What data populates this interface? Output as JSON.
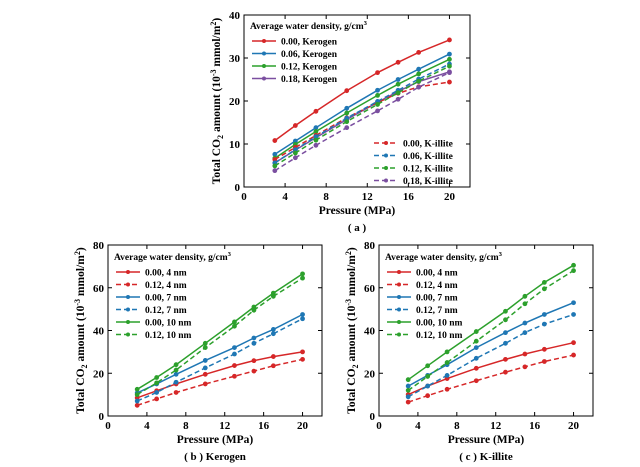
{
  "chart_data": [
    {
      "type": "line",
      "panel_label": "( a )",
      "xlabel": "Pressure (MPa)",
      "ylabel": "Total CO2 amount (10-3 mmol/m2)",
      "xlim": [
        0,
        22
      ],
      "ylim": [
        0,
        40
      ],
      "xticks": [
        0,
        4,
        8,
        12,
        16,
        20
      ],
      "yticks": [
        0,
        10,
        20,
        30,
        40
      ],
      "legend_title": "Average water density, g/cm3",
      "legend_placement": [
        "top-left",
        "bottom-right"
      ],
      "grid": false,
      "series": [
        {
          "name": "0.00, Kerogen",
          "color": "#d62728",
          "style": "solid",
          "x": [
            3,
            5,
            7,
            10,
            13,
            15,
            17,
            20
          ],
          "y": [
            10.8,
            14.3,
            17.6,
            22.4,
            26.6,
            29.0,
            31.3,
            34.2
          ]
        },
        {
          "name": "0.06, Kerogen",
          "color": "#1f77b4",
          "style": "solid",
          "x": [
            3,
            5,
            7,
            10,
            13,
            15,
            17,
            20
          ],
          "y": [
            7.6,
            10.7,
            13.8,
            18.3,
            22.5,
            25.0,
            27.4,
            30.9
          ]
        },
        {
          "name": "0.12, Kerogen",
          "color": "#2ca02c",
          "style": "solid",
          "x": [
            3,
            5,
            7,
            10,
            13,
            15,
            17,
            20
          ],
          "y": [
            6.7,
            9.9,
            12.9,
            17.2,
            21.3,
            23.9,
            26.3,
            29.7
          ]
        },
        {
          "name": "0.18, Kerogen",
          "color": "#7b4fa0",
          "style": "solid",
          "x": [
            3,
            5,
            7,
            10,
            13,
            15,
            17,
            20
          ],
          "y": [
            5.6,
            8.6,
            11.5,
            15.7,
            19.7,
            22.2,
            24.5,
            26.8
          ]
        },
        {
          "name": "0.00, K-illite",
          "color": "#d62728",
          "style": "dashed",
          "x": [
            3,
            5,
            7,
            10,
            13,
            15,
            17,
            20
          ],
          "y": [
            6.4,
            9.2,
            12.0,
            16.1,
            19.6,
            21.8,
            23.3,
            24.4
          ]
        },
        {
          "name": "0.06, K-illite",
          "color": "#1f77b4",
          "style": "dashed",
          "x": [
            3,
            5,
            7,
            10,
            13,
            15,
            17,
            20
          ],
          "y": [
            5.6,
            8.7,
            11.7,
            16.0,
            19.9,
            22.5,
            25.1,
            28.6
          ]
        },
        {
          "name": "0.12, K-illite",
          "color": "#2ca02c",
          "style": "dashed",
          "x": [
            3,
            5,
            7,
            10,
            13,
            15,
            17,
            20
          ],
          "y": [
            4.9,
            7.9,
            10.9,
            15.2,
            19.2,
            21.9,
            24.6,
            28.1
          ]
        },
        {
          "name": "0.18, K-illite",
          "color": "#7b4fa0",
          "style": "dashed",
          "x": [
            3,
            5,
            7,
            10,
            13,
            15,
            17,
            20
          ],
          "y": [
            3.8,
            6.8,
            9.7,
            13.8,
            17.7,
            20.4,
            23.2,
            26.6
          ]
        }
      ]
    },
    {
      "type": "line",
      "panel_label": "( b ) Kerogen",
      "xlabel": "Pressure (MPa)",
      "ylabel": "Total CO2 amount (10-3 mmol/m2)",
      "xlim": [
        0,
        22
      ],
      "ylim": [
        0,
        80
      ],
      "xticks": [
        0,
        4,
        8,
        12,
        16,
        20
      ],
      "yticks": [
        0,
        20,
        40,
        60,
        80
      ],
      "legend_title": "Average water density, g/cm3",
      "legend_placement": "top-left",
      "grid": false,
      "series": [
        {
          "name": "0.00, 4 nm",
          "color": "#d62728",
          "style": "solid",
          "x": [
            3,
            5,
            7,
            10,
            13,
            15,
            17,
            20
          ],
          "y": [
            8.5,
            11.8,
            15.0,
            19.5,
            23.6,
            25.9,
            27.8,
            30.0
          ]
        },
        {
          "name": "0.12, 4 nm",
          "color": "#d62728",
          "style": "dashed",
          "x": [
            3,
            5,
            7,
            10,
            13,
            15,
            17,
            20
          ],
          "y": [
            5.0,
            8.0,
            11.0,
            15.0,
            18.6,
            21.0,
            23.5,
            26.5
          ]
        },
        {
          "name": "0.00, 7 nm",
          "color": "#1f77b4",
          "style": "solid",
          "x": [
            3,
            5,
            7,
            10,
            13,
            15,
            17,
            20
          ],
          "y": [
            10.8,
            15.0,
            19.5,
            26.0,
            32.0,
            36.5,
            40.5,
            47.5
          ]
        },
        {
          "name": "0.12, 7 nm",
          "color": "#1f77b4",
          "style": "dashed",
          "x": [
            3,
            5,
            7,
            10,
            13,
            15,
            17,
            20
          ],
          "y": [
            7.0,
            11.0,
            15.8,
            22.5,
            29.0,
            34.0,
            38.5,
            45.5
          ]
        },
        {
          "name": "0.00, 10 nm",
          "color": "#2ca02c",
          "style": "solid",
          "x": [
            3,
            5,
            7,
            10,
            13,
            15,
            17,
            20
          ],
          "y": [
            12.5,
            18.0,
            24.0,
            34.0,
            44.0,
            51.0,
            57.5,
            66.5
          ]
        },
        {
          "name": "0.12, 10 nm",
          "color": "#2ca02c",
          "style": "dashed",
          "x": [
            3,
            5,
            7,
            10,
            13,
            15,
            17,
            20
          ],
          "y": [
            10.0,
            15.5,
            21.5,
            32.0,
            42.0,
            49.5,
            56.0,
            64.5
          ]
        }
      ]
    },
    {
      "type": "line",
      "panel_label": "( c ) K-illite",
      "xlabel": "Pressure (MPa)",
      "ylabel": "Total CO2 amount (10-3 mmol/m2)",
      "xlim": [
        0,
        22
      ],
      "ylim": [
        0,
        80
      ],
      "xticks": [
        0,
        4,
        8,
        12,
        16,
        20
      ],
      "yticks": [
        0,
        20,
        40,
        60,
        80
      ],
      "legend_title": "Average water density, g/cm3",
      "legend_placement": "top-left",
      "grid": false,
      "series": [
        {
          "name": "0.00, 4 nm",
          "color": "#d62728",
          "style": "solid",
          "x": [
            3,
            5,
            7,
            10,
            13,
            15,
            17,
            20
          ],
          "y": [
            10.0,
            14.0,
            17.5,
            22.3,
            26.5,
            29.0,
            31.2,
            34.3
          ]
        },
        {
          "name": "0.12, 4 nm",
          "color": "#d62728",
          "style": "dashed",
          "x": [
            3,
            5,
            7,
            10,
            13,
            15,
            17,
            20
          ],
          "y": [
            6.5,
            9.5,
            12.5,
            16.5,
            20.5,
            23.0,
            25.5,
            28.5
          ]
        },
        {
          "name": "0.00, 7 nm",
          "color": "#1f77b4",
          "style": "solid",
          "x": [
            3,
            5,
            7,
            10,
            13,
            15,
            17,
            20
          ],
          "y": [
            14.0,
            19.0,
            24.0,
            32.0,
            39.0,
            43.5,
            47.5,
            53.0
          ]
        },
        {
          "name": "0.12, 7 nm",
          "color": "#1f77b4",
          "style": "dashed",
          "x": [
            3,
            5,
            7,
            10,
            13,
            15,
            17,
            20
          ],
          "y": [
            9.0,
            14.0,
            19.0,
            27.0,
            34.0,
            39.0,
            43.0,
            47.5
          ]
        },
        {
          "name": "0.00, 10 nm",
          "color": "#2ca02c",
          "style": "solid",
          "x": [
            3,
            5,
            7,
            10,
            13,
            15,
            17,
            20
          ],
          "y": [
            17.0,
            23.5,
            30.0,
            39.5,
            49.0,
            56.0,
            62.5,
            70.5
          ]
        },
        {
          "name": "0.12, 10 nm",
          "color": "#2ca02c",
          "style": "dashed",
          "x": [
            3,
            5,
            7,
            10,
            13,
            15,
            17,
            20
          ],
          "y": [
            12.0,
            18.5,
            25.0,
            35.0,
            45.0,
            52.5,
            59.5,
            68.0
          ]
        }
      ]
    }
  ]
}
